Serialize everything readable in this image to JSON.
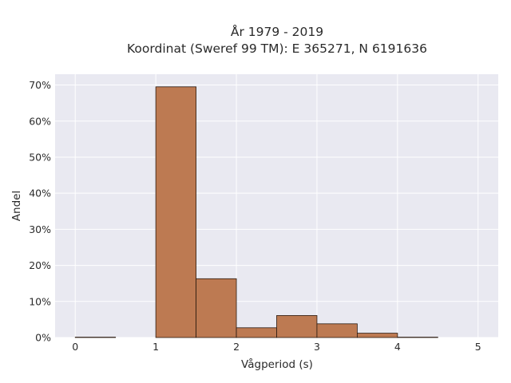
{
  "chart_data": {
    "type": "bar",
    "title_lines": [
      "År 1979 - 2019",
      "Koordinat (Sweref 99 TM): E 365271, N 6191636"
    ],
    "xlabel": "Vågperiod (s)",
    "ylabel": "Andel",
    "xlim": [
      -0.25,
      5.25
    ],
    "ylim": [
      0,
      0.73
    ],
    "x_ticks": [
      0,
      1,
      2,
      3,
      4,
      5
    ],
    "x_tick_labels": [
      "0",
      "1",
      "2",
      "3",
      "4",
      "5"
    ],
    "y_ticks": [
      0,
      0.1,
      0.2,
      0.3,
      0.4,
      0.5,
      0.6,
      0.7
    ],
    "y_tick_labels": [
      "0%",
      "10%",
      "20%",
      "30%",
      "40%",
      "50%",
      "60%",
      "70%"
    ],
    "grid": true,
    "bar_color": "#bd7a52",
    "bar_edge_color": "#2a1a10",
    "plot_background": "#e9e9f1",
    "bins": [
      {
        "start": 0.0,
        "end": 0.5,
        "value": 0.001
      },
      {
        "start": 0.5,
        "end": 1.0,
        "value": 0.0
      },
      {
        "start": 1.0,
        "end": 1.5,
        "value": 0.695
      },
      {
        "start": 1.5,
        "end": 2.0,
        "value": 0.163
      },
      {
        "start": 2.0,
        "end": 2.5,
        "value": 0.027
      },
      {
        "start": 2.5,
        "end": 3.0,
        "value": 0.061
      },
      {
        "start": 3.0,
        "end": 3.5,
        "value": 0.038
      },
      {
        "start": 3.5,
        "end": 4.0,
        "value": 0.012
      },
      {
        "start": 4.0,
        "end": 4.5,
        "value": 0.001
      },
      {
        "start": 4.5,
        "end": 5.0,
        "value": 0.0
      }
    ]
  }
}
